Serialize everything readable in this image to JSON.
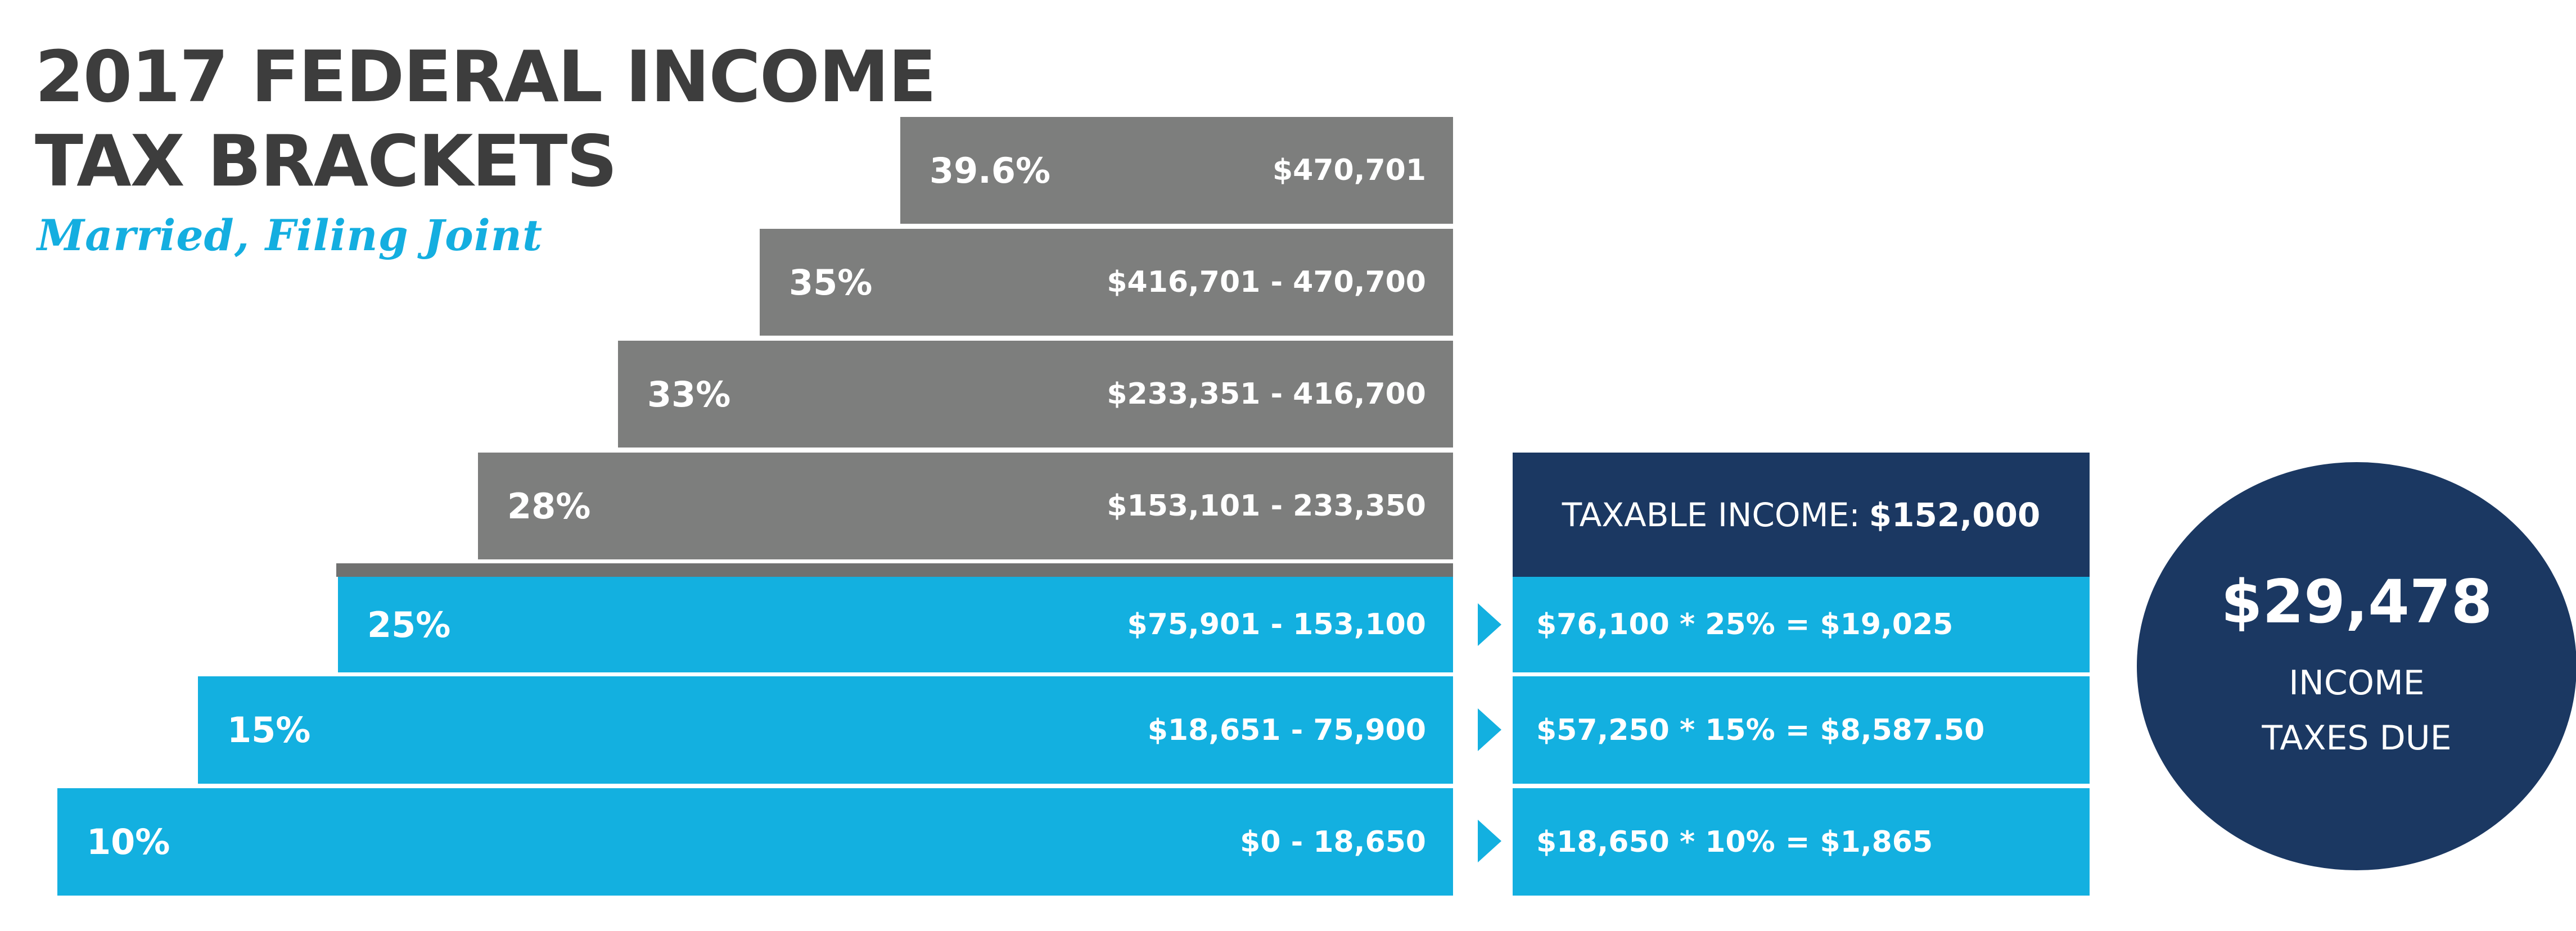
{
  "title_line1": "2017 FEDERAL INCOME",
  "title_line2": "TAX BRACKETS",
  "subtitle": "Married, Filing Joint",
  "brackets": [
    {
      "rate": "39.6%",
      "range": "$470,701",
      "highlighted": false
    },
    {
      "rate": "35%",
      "range": "$416,701 - 470,700",
      "highlighted": false
    },
    {
      "rate": "33%",
      "range": "$233,351 - 416,700",
      "highlighted": false
    },
    {
      "rate": "28%",
      "range": "$153,101 - 233,350",
      "highlighted": false
    },
    {
      "rate": "25%",
      "range": "$75,901 - 153,100",
      "highlighted": true
    },
    {
      "rate": "15%",
      "range": "$18,651 - 75,900",
      "highlighted": true
    },
    {
      "rate": "10%",
      "range": "$0 - 18,650",
      "highlighted": true
    }
  ],
  "taxable_income": {
    "label": "TAXABLE INCOME:",
    "value": "$152,000"
  },
  "calculations": [
    "$76,100 * 25% = $19,025",
    "$57,250 * 15% = $8,587.50",
    "$18,650 * 10% = $1,865"
  ],
  "total": {
    "amount": "$29,478",
    "caption_line1": "INCOME",
    "caption_line2": "TAXES DUE"
  },
  "colors": {
    "gray": "#7d7e7d",
    "blue": "#13b0e0",
    "navy": "#1b3862",
    "title": "#3d3d3d"
  }
}
